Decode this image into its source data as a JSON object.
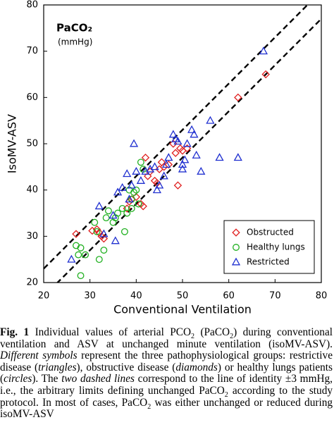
{
  "chart_data": {
    "type": "scatter",
    "title": "PaCO₂",
    "subtitle": "(mmHg)",
    "x_label": "Conventional Ventilation",
    "y_label": "IsoMV-ASV",
    "xlim": [
      20,
      80
    ],
    "ylim": [
      20,
      80
    ],
    "xticks": [
      20,
      30,
      40,
      50,
      60,
      70,
      80
    ],
    "yticks": [
      20,
      30,
      40,
      50,
      60,
      70,
      80
    ],
    "legend": "lower right",
    "reference_lines": [
      {
        "slope": 1,
        "intercept": 3
      },
      {
        "slope": 1,
        "intercept": -3
      }
    ],
    "series": [
      {
        "name": "Obstructed",
        "color": "#e02020",
        "marker": "diamond",
        "x": [
          27,
          30.5,
          31.5,
          32,
          32.5,
          33,
          38,
          38.5,
          39,
          40,
          41,
          41.5,
          42,
          42.5,
          43,
          44,
          44.5,
          45,
          45.5,
          46,
          47,
          48,
          48.5,
          49,
          49.5,
          50,
          51,
          62,
          68
        ],
        "values": [
          30.5,
          31.2,
          31.5,
          30.8,
          30,
          29.5,
          36,
          37.5,
          38,
          38.5,
          37,
          36.5,
          47,
          43,
          44,
          42,
          41.5,
          44.5,
          46,
          45,
          45.5,
          50,
          48,
          41,
          49,
          48.5,
          49,
          60,
          65
        ]
      },
      {
        "name": "Healthy lungs",
        "color": "#20b020",
        "marker": "circle",
        "x": [
          27,
          27.5,
          28,
          28,
          29,
          31,
          31.5,
          32,
          33,
          33.5,
          34,
          35,
          35.5,
          36,
          37,
          37.5,
          38,
          38.5,
          39,
          39,
          39.5,
          40,
          40.5,
          41,
          41.5
        ],
        "values": [
          28,
          26,
          27.5,
          21.5,
          26,
          33,
          31,
          25,
          27,
          34,
          35.5,
          33,
          34,
          35,
          36,
          31,
          35,
          40,
          36,
          38,
          39.5,
          40,
          37,
          46,
          44.5
        ]
      },
      {
        "name": "Restricted",
        "color": "#2030d0",
        "marker": "triangle",
        "x": [
          26,
          32,
          33,
          35,
          35.5,
          36,
          37,
          38,
          38.5,
          39,
          39.5,
          40,
          41,
          42,
          43,
          44,
          44.5,
          45,
          46,
          46.5,
          47,
          48,
          48.5,
          49,
          50,
          50,
          50.5,
          51,
          52,
          52.5,
          53,
          54,
          56,
          58,
          62,
          67.5
        ],
        "values": [
          25,
          36.5,
          30.5,
          34.5,
          29,
          39.5,
          40.5,
          43.5,
          38,
          41,
          50,
          44,
          42,
          44,
          44.5,
          45,
          40,
          41,
          43,
          45.5,
          47,
          52,
          51,
          50.5,
          44.5,
          45.5,
          46.5,
          50,
          53,
          52,
          47.5,
          44,
          55,
          47,
          47,
          70
        ]
      }
    ]
  },
  "caption": {
    "label": "Fig. 1",
    "runs": [
      {
        "text": " Individual values of arterial PCO"
      },
      {
        "text": "2",
        "sub": true
      },
      {
        "text": " (PaCO"
      },
      {
        "text": "2",
        "sub": true
      },
      {
        "text": ") during conventional ventilation and ASV at unchanged minute ventilation (isoMV-ASV). "
      },
      {
        "text": "Different symbols",
        "italic": true
      },
      {
        "text": " represent the three pathophysiological groups: restrictive disease ("
      },
      {
        "text": "triangles",
        "italic": true
      },
      {
        "text": "), obstructive disease ("
      },
      {
        "text": "diamonds",
        "italic": true
      },
      {
        "text": ") or healthy lungs patients ("
      },
      {
        "text": "circles",
        "italic": true
      },
      {
        "text": "). The "
      },
      {
        "text": "two dashed lines",
        "italic": true
      },
      {
        "text": " correspond to the line of identity ±3 mmHg, i.e., the arbitrary limits defining unchanged PaCO"
      },
      {
        "text": "2",
        "sub": true
      },
      {
        "text": " according to the study protocol. In most of cases, PaCO"
      },
      {
        "text": "2",
        "sub": true
      },
      {
        "text": " was either unchanged or reduced during isoMV-ASV"
      }
    ]
  }
}
